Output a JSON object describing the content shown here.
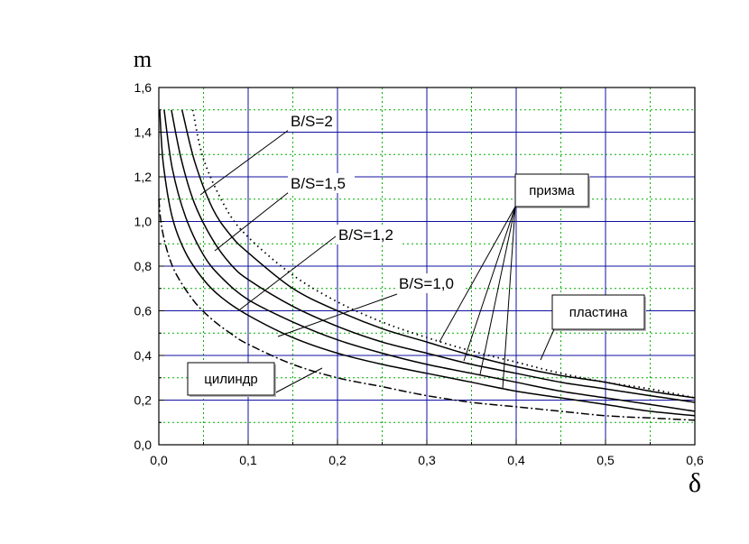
{
  "chart_data": {
    "type": "line",
    "title": "",
    "xlabel": "δ",
    "ylabel": "m",
    "xlim": [
      0,
      0.6
    ],
    "ylim": [
      0,
      1.6
    ],
    "x_ticks": [
      "0,0",
      "0,1",
      "0,2",
      "0,3",
      "0,4",
      "0,5",
      "0,6"
    ],
    "y_ticks": [
      "0,0",
      "0,2",
      "0,4",
      "0,6",
      "0,8",
      "1,0",
      "1,2",
      "1,4",
      "1,6"
    ],
    "grid": true,
    "series": [
      {
        "name": "пластина",
        "style": "dotted",
        "x": [
          0.038,
          0.05,
          0.075,
          0.1,
          0.15,
          0.2,
          0.25,
          0.3,
          0.35,
          0.4,
          0.45,
          0.5,
          0.55,
          0.6
        ],
        "y": [
          1.5,
          1.28,
          1.06,
          0.93,
          0.76,
          0.64,
          0.55,
          0.48,
          0.42,
          0.37,
          0.32,
          0.28,
          0.25,
          0.21
        ]
      },
      {
        "name": "B/S=2",
        "style": "solid",
        "x": [
          0.026,
          0.04,
          0.06,
          0.08,
          0.1,
          0.15,
          0.2,
          0.25,
          0.3,
          0.35,
          0.4,
          0.45,
          0.5,
          0.55,
          0.6
        ],
        "y": [
          1.5,
          1.27,
          1.06,
          0.94,
          0.86,
          0.7,
          0.6,
          0.52,
          0.46,
          0.4,
          0.35,
          0.31,
          0.28,
          0.24,
          0.21
        ]
      },
      {
        "name": "B/S=1,5",
        "style": "solid",
        "x": [
          0.014,
          0.025,
          0.04,
          0.06,
          0.08,
          0.1,
          0.15,
          0.2,
          0.25,
          0.3,
          0.35,
          0.4,
          0.45,
          0.5,
          0.55,
          0.6
        ],
        "y": [
          1.5,
          1.28,
          1.08,
          0.92,
          0.81,
          0.74,
          0.62,
          0.53,
          0.46,
          0.41,
          0.36,
          0.32,
          0.28,
          0.25,
          0.22,
          0.19
        ]
      },
      {
        "name": "B/S=1,2",
        "style": "solid",
        "x": [
          0.006,
          0.015,
          0.03,
          0.05,
          0.07,
          0.1,
          0.15,
          0.2,
          0.25,
          0.3,
          0.35,
          0.4,
          0.45,
          0.5,
          0.55,
          0.6
        ],
        "y": [
          1.5,
          1.24,
          1.02,
          0.85,
          0.75,
          0.65,
          0.55,
          0.47,
          0.41,
          0.36,
          0.32,
          0.28,
          0.24,
          0.21,
          0.18,
          0.15
        ]
      },
      {
        "name": "B/S=1,0",
        "style": "solid",
        "x": [
          0.001,
          0.005,
          0.015,
          0.03,
          0.05,
          0.07,
          0.1,
          0.15,
          0.2,
          0.25,
          0.3,
          0.35,
          0.4,
          0.45,
          0.5,
          0.55,
          0.6
        ],
        "y": [
          1.5,
          1.26,
          1.02,
          0.86,
          0.74,
          0.66,
          0.58,
          0.48,
          0.41,
          0.36,
          0.32,
          0.28,
          0.24,
          0.21,
          0.18,
          0.15,
          0.13
        ]
      },
      {
        "name": "цилиндр",
        "style": "dashdot",
        "x": [
          0.0,
          0.003,
          0.01,
          0.02,
          0.04,
          0.06,
          0.08,
          0.1,
          0.15,
          0.2,
          0.25,
          0.3,
          0.35,
          0.4,
          0.45,
          0.5,
          0.55,
          0.6
        ],
        "y": [
          1.1,
          0.98,
          0.86,
          0.76,
          0.64,
          0.56,
          0.5,
          0.45,
          0.36,
          0.3,
          0.26,
          0.22,
          0.19,
          0.17,
          0.15,
          0.13,
          0.12,
          0.11
        ]
      }
    ],
    "annotations": [
      {
        "text": "B/S=2",
        "boxed": false,
        "points_to": "B/S=2"
      },
      {
        "text": "B/S=1,5",
        "boxed": false,
        "points_to": "B/S=1,5"
      },
      {
        "text": "B/S=1,2",
        "boxed": false,
        "points_to": "B/S=1,2"
      },
      {
        "text": "B/S=1,0",
        "boxed": false,
        "points_to": "B/S=1,0"
      },
      {
        "text": "призма",
        "boxed": true,
        "points_to": [
          "B/S=2",
          "B/S=1,5",
          "B/S=1,2",
          "B/S=1,0"
        ]
      },
      {
        "text": "пластина",
        "boxed": true,
        "points_to": "пластина"
      },
      {
        "text": "цилиндр",
        "boxed": true,
        "points_to": "цилиндр"
      }
    ],
    "colors": {
      "grid_major": "#1010a0",
      "grid_minor": "#00b000",
      "curve": "#000000",
      "axis": "#000000"
    }
  }
}
